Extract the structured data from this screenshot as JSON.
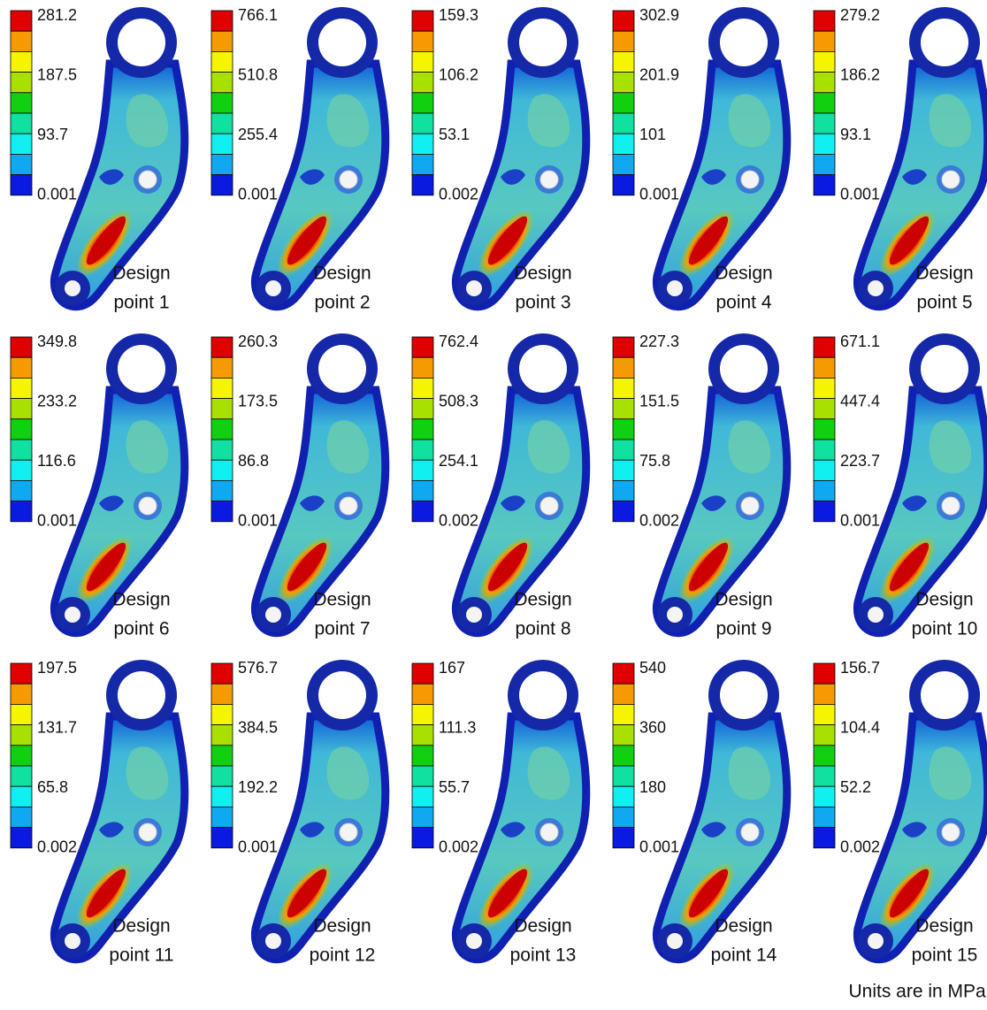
{
  "panels": [
    {
      "legend": [
        "281.2",
        "187.5",
        "93.7",
        "0.001"
      ],
      "label": [
        "Design",
        "point 1"
      ]
    },
    {
      "legend": [
        "766.1",
        "510.8",
        "255.4",
        "0.001"
      ],
      "label": [
        "Design",
        "point 2"
      ]
    },
    {
      "legend": [
        "159.3",
        "106.2",
        "53.1",
        "0.002"
      ],
      "label": [
        "Design",
        "point 3"
      ]
    },
    {
      "legend": [
        "302.9",
        "201.9",
        "101",
        "0.001"
      ],
      "label": [
        "Design",
        "point 4"
      ]
    },
    {
      "legend": [
        "279.2",
        "186.2",
        "93.1",
        "0.001"
      ],
      "label": [
        "Design",
        "point 5"
      ]
    },
    {
      "legend": [
        "349.8",
        "233.2",
        "116.6",
        "0.001"
      ],
      "label": [
        "Design",
        "point 6"
      ]
    },
    {
      "legend": [
        "260.3",
        "173.5",
        "86.8",
        "0.001"
      ],
      "label": [
        "Design",
        "point 7"
      ]
    },
    {
      "legend": [
        "762.4",
        "508.3",
        "254.1",
        "0.002"
      ],
      "label": [
        "Design",
        "point 8"
      ]
    },
    {
      "legend": [
        "227.3",
        "151.5",
        "75.8",
        "0.002"
      ],
      "label": [
        "Design",
        "point 9"
      ]
    },
    {
      "legend": [
        "671.1",
        "447.4",
        "223.7",
        "0.001"
      ],
      "label": [
        "Design",
        "point 10"
      ]
    },
    {
      "legend": [
        "197.5",
        "131.7",
        "65.8",
        "0.002"
      ],
      "label": [
        "Design",
        "point 11"
      ]
    },
    {
      "legend": [
        "576.7",
        "384.5",
        "192.2",
        "0.001"
      ],
      "label": [
        "Design",
        "point 12"
      ]
    },
    {
      "legend": [
        "167",
        "111.3",
        "55.7",
        "0.002"
      ],
      "label": [
        "Design",
        "point 13"
      ]
    },
    {
      "legend": [
        "540",
        "360",
        "180",
        "0.001"
      ],
      "label": [
        "Design",
        "point 14"
      ]
    },
    {
      "legend": [
        "156.7",
        "104.4",
        "52.2",
        "0.002"
      ],
      "label": [
        "Design",
        "point 15"
      ]
    }
  ],
  "footnote": "Units are in MPa."
}
